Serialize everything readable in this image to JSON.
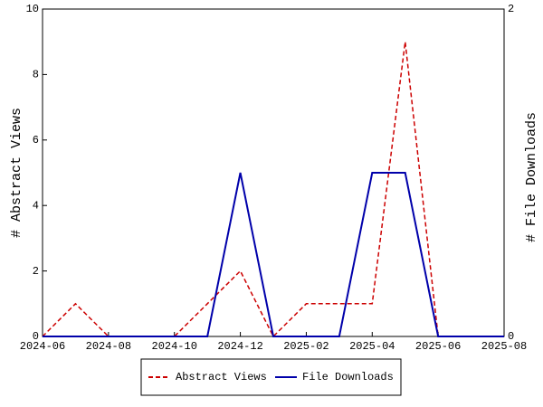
{
  "chart_data": {
    "type": "line",
    "x": [
      "2024-06",
      "2024-07",
      "2024-08",
      "2024-09",
      "2024-10",
      "2024-11",
      "2024-12",
      "2025-01",
      "2025-02",
      "2025-03",
      "2025-04",
      "2025-05",
      "2025-06",
      "2025-07",
      "2025-08"
    ],
    "xlim": [
      "2024-06",
      "2025-08"
    ],
    "xticks": [
      "2024-06",
      "2024-08",
      "2024-10",
      "2024-12",
      "2025-02",
      "2025-04",
      "2025-06",
      "2025-08"
    ],
    "ylabel": "# Abstract Views",
    "y2label": "# File Downloads",
    "ylim": [
      0,
      10
    ],
    "yticks": [
      0,
      2,
      4,
      6,
      8,
      10
    ],
    "y2lim": [
      0,
      2
    ],
    "y2ticks": [
      0,
      2
    ],
    "series": [
      {
        "name": "Abstract Views",
        "color": "#cc0000",
        "dashed": true,
        "values": [
          0,
          1,
          0,
          0,
          0,
          1,
          2,
          0,
          1,
          1,
          1,
          9,
          0,
          0,
          0
        ]
      },
      {
        "name": "File Downloads",
        "color": "#0000aa",
        "axis": "y2",
        "values": [
          0,
          0,
          0,
          0,
          0,
          0,
          1,
          0,
          0,
          0,
          1,
          1,
          0,
          0,
          0
        ]
      }
    ]
  }
}
